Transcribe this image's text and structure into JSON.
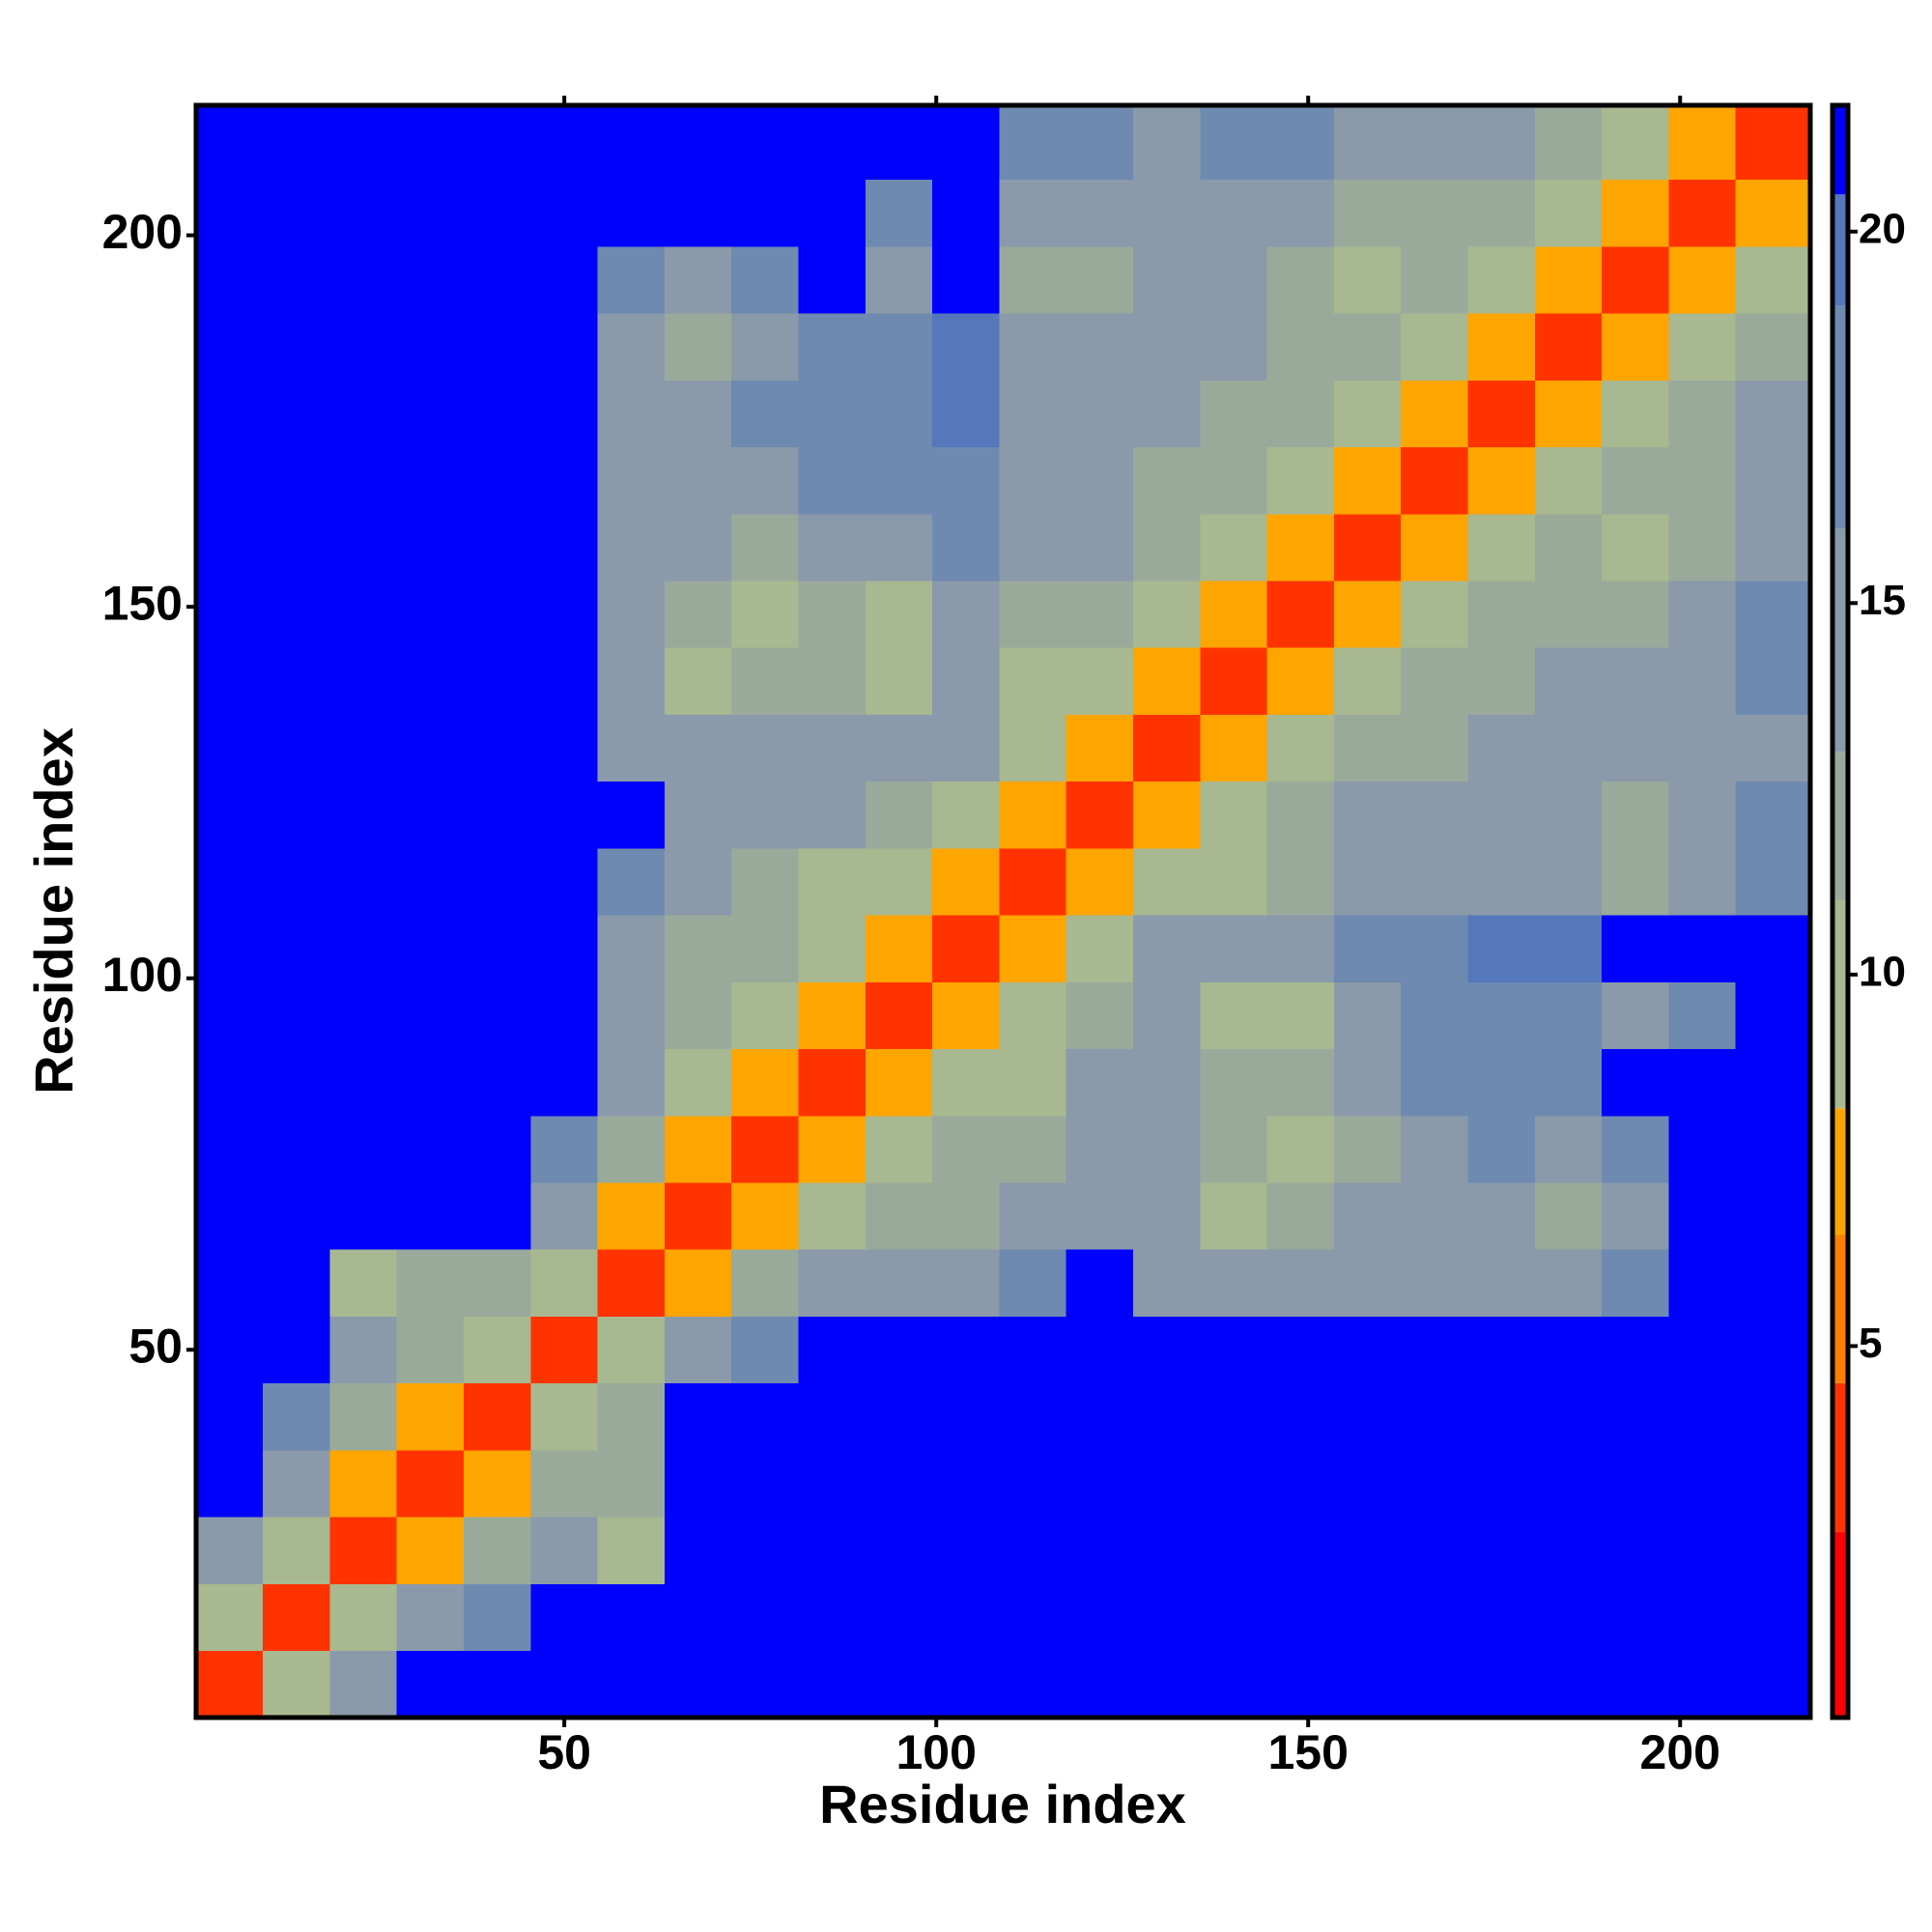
{
  "chart_data": {
    "type": "heatmap",
    "xlabel": "Residue index",
    "ylabel": "Residue index",
    "xlim": [
      0.5,
      217.5
    ],
    "ylim": [
      0.5,
      217.5
    ],
    "xticks": [
      50,
      100,
      150,
      200
    ],
    "yticks": [
      50,
      100,
      150,
      200
    ],
    "bins": [
      0.5,
      9.5,
      18.5,
      27.5,
      36.5,
      45.5,
      54.5,
      63.5,
      72.5,
      81.5,
      90.5,
      99.5,
      108.5,
      117.5,
      126.5,
      135.5,
      144.5,
      153.5,
      162.5,
      171.5,
      180.5,
      189.5,
      198.5,
      207.5,
      217.5
    ],
    "values": [
      [
        4,
        9,
        15,
        21,
        21,
        21,
        21,
        21,
        21,
        21,
        21,
        21,
        21,
        21,
        21,
        21,
        21,
        21,
        21,
        21,
        21,
        21,
        21,
        21
      ],
      [
        9,
        4,
        9,
        14,
        17,
        21,
        21,
        21,
        21,
        21,
        21,
        21,
        21,
        21,
        21,
        21,
        21,
        21,
        21,
        21,
        21,
        21,
        21,
        21
      ],
      [
        15,
        9,
        4,
        8,
        12,
        15,
        9,
        21,
        21,
        21,
        21,
        21,
        21,
        21,
        21,
        21,
        21,
        21,
        21,
        21,
        21,
        21,
        21,
        21
      ],
      [
        21,
        14,
        8,
        4,
        8,
        12,
        12,
        21,
        21,
        21,
        21,
        21,
        21,
        21,
        21,
        21,
        21,
        21,
        21,
        21,
        21,
        21,
        21,
        21
      ],
      [
        21,
        17,
        12,
        8,
        4,
        9,
        13,
        21,
        21,
        21,
        21,
        21,
        21,
        21,
        21,
        21,
        21,
        21,
        21,
        21,
        21,
        21,
        21,
        21
      ],
      [
        21,
        21,
        15,
        12,
        9,
        4,
        9,
        14,
        17,
        21,
        21,
        21,
        21,
        21,
        21,
        21,
        21,
        21,
        21,
        21,
        21,
        21,
        21,
        21
      ],
      [
        21,
        21,
        9,
        12,
        13,
        9,
        4,
        8,
        12,
        14,
        15,
        16,
        18,
        21,
        16,
        16,
        16,
        16,
        16,
        16,
        16,
        18,
        21,
        21
      ],
      [
        21,
        21,
        21,
        21,
        21,
        14,
        8,
        4,
        8,
        11,
        12,
        13,
        14,
        15,
        14,
        11,
        12,
        14,
        15,
        14,
        12,
        16,
        21,
        21
      ],
      [
        21,
        21,
        21,
        21,
        21,
        17,
        12,
        8,
        4,
        8,
        10,
        12,
        13,
        14,
        14,
        12,
        11,
        13,
        15,
        17,
        15,
        17,
        21,
        21
      ],
      [
        21,
        21,
        21,
        21,
        21,
        21,
        14,
        11,
        8,
        4,
        8,
        10,
        11,
        14,
        15,
        13,
        12,
        15,
        18,
        19,
        19,
        21,
        21,
        21
      ],
      [
        21,
        21,
        21,
        21,
        21,
        21,
        15,
        12,
        10,
        8,
        4,
        8,
        9,
        12,
        14,
        10,
        11,
        14,
        17,
        18,
        17,
        16,
        18,
        21
      ],
      [
        21,
        21,
        21,
        21,
        21,
        21,
        16,
        13,
        12,
        10,
        8,
        4,
        8,
        10,
        14,
        15,
        16,
        17,
        18,
        20,
        20,
        21,
        21,
        21
      ],
      [
        21,
        21,
        21,
        21,
        21,
        21,
        18,
        14,
        13,
        11,
        9,
        8,
        4,
        8,
        10,
        11,
        13,
        14,
        14,
        15,
        16,
        13,
        14,
        18
      ],
      [
        21,
        21,
        21,
        21,
        21,
        21,
        21,
        15,
        14,
        14,
        12,
        10,
        8,
        4,
        8,
        10,
        12,
        14,
        14,
        15,
        15,
        12,
        14,
        18
      ],
      [
        21,
        21,
        21,
        21,
        21,
        21,
        16,
        14,
        14,
        15,
        14,
        14,
        10,
        8,
        4,
        8,
        10,
        12,
        12,
        14,
        15,
        15,
        14,
        16
      ],
      [
        21,
        21,
        21,
        21,
        21,
        21,
        16,
        11,
        12,
        13,
        10,
        15,
        11,
        10,
        8,
        4,
        8,
        10,
        12,
        13,
        15,
        16,
        16,
        18
      ],
      [
        21,
        21,
        21,
        21,
        21,
        21,
        16,
        12,
        11,
        12,
        11,
        16,
        13,
        12,
        10,
        8,
        4,
        8,
        10,
        12,
        12,
        13,
        14,
        17
      ],
      [
        21,
        21,
        21,
        21,
        21,
        21,
        16,
        14,
        13,
        15,
        14,
        17,
        14,
        14,
        12,
        10,
        8,
        4,
        8,
        10,
        12,
        11,
        13,
        14
      ],
      [
        21,
        21,
        21,
        21,
        21,
        21,
        16,
        15,
        15,
        18,
        17,
        18,
        14,
        14,
        12,
        12,
        10,
        8,
        4,
        8,
        10,
        12,
        13,
        14
      ],
      [
        21,
        21,
        21,
        21,
        21,
        21,
        16,
        14,
        17,
        19,
        18,
        20,
        15,
        15,
        14,
        13,
        12,
        10,
        8,
        4,
        8,
        10,
        12,
        14
      ],
      [
        21,
        21,
        21,
        21,
        21,
        21,
        16,
        12,
        15,
        19,
        17,
        20,
        16,
        15,
        15,
        15,
        12,
        12,
        10,
        8,
        4,
        8,
        10,
        13
      ],
      [
        21,
        21,
        21,
        21,
        21,
        21,
        18,
        16,
        17,
        21,
        16,
        21,
        13,
        12,
        15,
        16,
        13,
        11,
        12,
        10,
        8,
        4,
        8,
        10
      ],
      [
        21,
        21,
        21,
        21,
        21,
        21,
        21,
        21,
        21,
        21,
        18,
        21,
        14,
        14,
        14,
        16,
        14,
        13,
        13,
        12,
        10,
        8,
        4,
        8
      ],
      [
        21,
        21,
        21,
        21,
        21,
        21,
        21,
        21,
        21,
        21,
        21,
        21,
        18,
        18,
        16,
        18,
        17,
        14,
        14,
        14,
        13,
        10,
        8,
        4
      ]
    ],
    "colorbar": {
      "lim": [
        0,
        21.7
      ],
      "ticks": [
        5,
        10,
        15,
        20
      ],
      "stops": [
        {
          "max": 2.5,
          "color": "#ff0000"
        },
        {
          "max": 4.5,
          "color": "#ff3300"
        },
        {
          "max": 6.5,
          "color": "#ff8000"
        },
        {
          "max": 8.2,
          "color": "#ffa500"
        },
        {
          "max": 11,
          "color": "#a8b890"
        },
        {
          "max": 13,
          "color": "#9aaa9a"
        },
        {
          "max": 16,
          "color": "#8a9aaa"
        },
        {
          "max": 19,
          "color": "#6f8ab0"
        },
        {
          "max": 20.5,
          "color": "#5577bb"
        },
        {
          "max": 21.7,
          "color": "#0000ff"
        }
      ]
    }
  }
}
